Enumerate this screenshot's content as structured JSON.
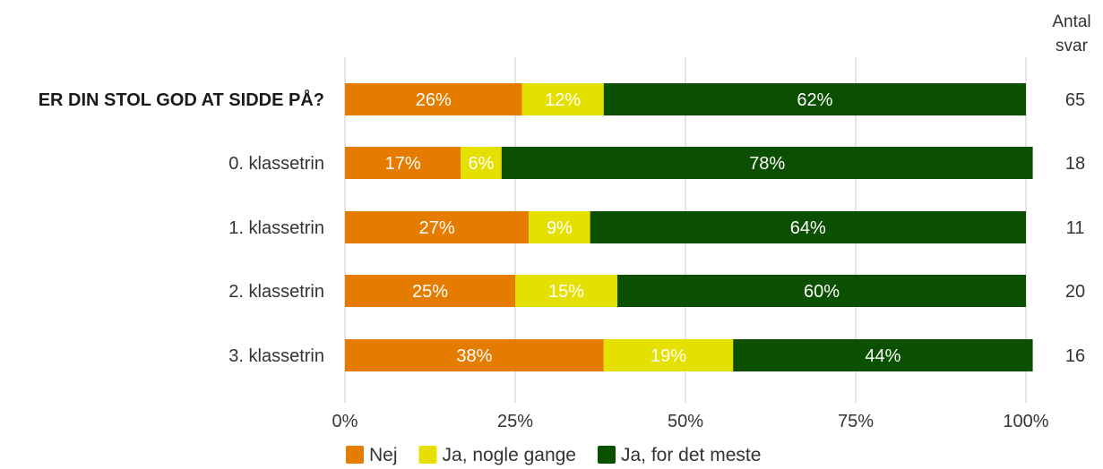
{
  "chart_data": {
    "type": "bar",
    "orientation": "horizontal",
    "stacked": true,
    "percent_scale": true,
    "categories": [
      "ER DIN STOL GOD AT SIDDE PÅ?",
      "0. klassetrin",
      "1. klassetrin",
      "2. klassetrin",
      "3. klassetrin"
    ],
    "bold_categories": [
      0
    ],
    "series": [
      {
        "name": "Nej",
        "color": "#e57c00",
        "values": [
          26,
          17,
          27,
          25,
          38
        ],
        "labels": [
          "26%",
          "17%",
          "27%",
          "25%",
          "38%"
        ]
      },
      {
        "name": "Ja, nogle gange",
        "color": "#e6e000",
        "values": [
          12,
          6,
          9,
          15,
          19
        ],
        "labels": [
          "12%",
          "6%",
          "9%",
          "15%",
          "19%"
        ]
      },
      {
        "name": "Ja, for det meste",
        "color": "#0a5000",
        "values": [
          62,
          78,
          64,
          60,
          44
        ],
        "labels": [
          "62%",
          "78%",
          "64%",
          "60%",
          "44%"
        ]
      }
    ],
    "x_ticks": [
      "0%",
      "25%",
      "50%",
      "75%",
      "100%"
    ],
    "xlim": [
      0,
      100
    ],
    "grid": true,
    "legend_position": "bottom",
    "count_header": [
      "Antal",
      "svar"
    ],
    "counts": [
      "65",
      "18",
      "11",
      "20",
      "16"
    ],
    "title": "",
    "xlabel": "",
    "ylabel": ""
  }
}
